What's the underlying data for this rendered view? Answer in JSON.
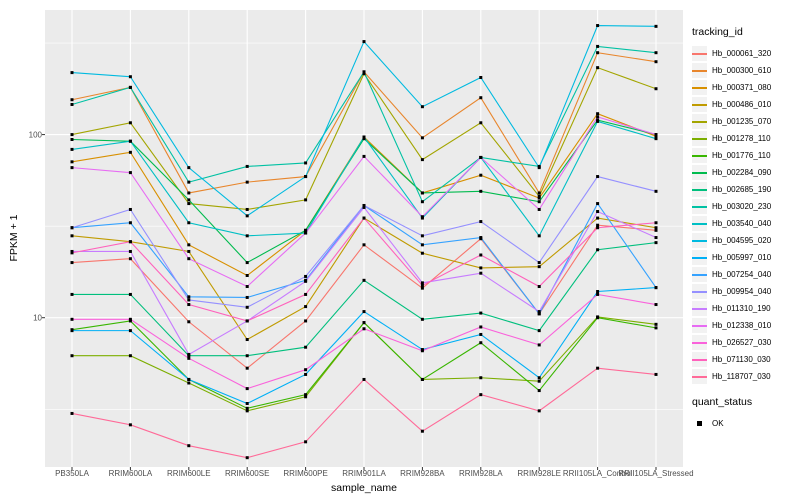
{
  "chart_data": {
    "type": "line",
    "title": "",
    "xlabel": "sample_name",
    "ylabel": "FPKM + 1",
    "yscale": "log10",
    "ylim": [
      1.53,
      479
    ],
    "yticks": [
      10,
      100
    ],
    "minor_gridlines": [
      3.162,
      31.62,
      316.2
    ],
    "grid": "on",
    "legend_position": "right",
    "legend_title": "tracking_id",
    "point_style": {
      "shape": "square",
      "color": "#000000",
      "size": 3
    },
    "quant_status": {
      "title": "quant_status",
      "items": [
        {
          "label": "OK",
          "shape": "square",
          "color": "#000000"
        }
      ]
    },
    "categories": [
      "PB350LA",
      "RRIM600LA",
      "RRIM600LE",
      "RRIM600SE",
      "RRIM600PE",
      "RRIM901LA",
      "RRIM928BA",
      "RRIM928LA",
      "RRIM928LE",
      "RRII105LA_Control",
      "RRII105LA_Stressed"
    ],
    "series": [
      {
        "name": "Hb_000061_320",
        "color": "#F8766D",
        "values": [
          20,
          21,
          9.5,
          5.3,
          9.6,
          25,
          14.5,
          27,
          10.5,
          32,
          30
        ]
      },
      {
        "name": "Hb_000300_610",
        "color": "#E8862D",
        "values": [
          155,
          181,
          48,
          55,
          59,
          220,
          96,
          159,
          48,
          280,
          250
        ]
      },
      {
        "name": "Hb_000371_080",
        "color": "#D89000",
        "values": [
          71,
          80,
          25,
          17,
          30,
          97,
          48,
          60,
          45,
          130,
          98
        ]
      },
      {
        "name": "Hb_000486_010",
        "color": "#C09B00",
        "values": [
          28,
          26,
          23,
          7.6,
          11.5,
          35,
          22.5,
          18.7,
          19,
          35,
          31
        ]
      },
      {
        "name": "Hb_001235_070",
        "color": "#A3A500",
        "values": [
          100,
          116,
          42,
          39,
          44,
          215,
          73,
          116,
          46,
          232,
          178
        ]
      },
      {
        "name": "Hb_001278_110",
        "color": "#7CAE00",
        "values": [
          6.2,
          6.2,
          4.4,
          3.1,
          3.7,
          9.4,
          4.6,
          4.7,
          4.5,
          10.1,
          9.2
        ]
      },
      {
        "name": "Hb_001776_110",
        "color": "#39B600",
        "values": [
          8.6,
          9.6,
          4.6,
          3.2,
          3.8,
          9.4,
          4.6,
          7.3,
          4.0,
          10,
          8.8
        ]
      },
      {
        "name": "Hb_002284_090",
        "color": "#00BB4E",
        "values": [
          94,
          92,
          44,
          20,
          30,
          95,
          48,
          49,
          43,
          120,
          100
        ]
      },
      {
        "name": "Hb_002685_190",
        "color": "#00BF7D",
        "values": [
          13.4,
          13.4,
          6.2,
          6.2,
          6.9,
          16,
          9.8,
          10.6,
          8.5,
          23.5,
          25.7
        ]
      },
      {
        "name": "Hb_003020_230",
        "color": "#00C1A3",
        "values": [
          146,
          181,
          55,
          67,
          70,
          220,
          43,
          75,
          67,
          303,
          280
        ]
      },
      {
        "name": "Hb_003540_040",
        "color": "#00BFC4",
        "values": [
          83,
          92,
          33,
          28,
          29,
          97,
          35,
          75,
          28,
          118,
          95
        ]
      },
      {
        "name": "Hb_004595_020",
        "color": "#00BAE0",
        "values": [
          218,
          207,
          66,
          36,
          59,
          322,
          142,
          205,
          66,
          394,
          390
        ]
      },
      {
        "name": "Hb_005997_010",
        "color": "#00B0F6",
        "values": [
          8.5,
          8.5,
          4.6,
          3.4,
          4.9,
          10.8,
          6.7,
          8.1,
          4.7,
          13.9,
          14.6
        ]
      },
      {
        "name": "Hb_007254_040",
        "color": "#35A2FF",
        "values": [
          31,
          33,
          13,
          12.9,
          16,
          41,
          25,
          27.4,
          10.5,
          42,
          14.6
        ]
      },
      {
        "name": "Hb_009954_040",
        "color": "#9590FF",
        "values": [
          31,
          39,
          12.5,
          11.4,
          16.8,
          41,
          28,
          33.5,
          20,
          59,
          49
        ]
      },
      {
        "name": "Hb_011310_190",
        "color": "#C77CFF",
        "values": [
          23,
          23,
          6.3,
          9.6,
          15.8,
          40,
          15.5,
          17.5,
          10.8,
          38,
          27.4
        ]
      },
      {
        "name": "Hb_012338_010",
        "color": "#E76BF3",
        "values": [
          66,
          62,
          21,
          14.8,
          29,
          76,
          35.6,
          75,
          39,
          125,
          100
        ]
      },
      {
        "name": "Hb_026527_030",
        "color": "#FA62DB",
        "values": [
          9.8,
          9.8,
          6.0,
          4.1,
          5.2,
          8.7,
          6.6,
          8.9,
          7.1,
          13.4,
          11.8
        ]
      },
      {
        "name": "Hb_071130_030",
        "color": "#FF62BC",
        "values": [
          22.6,
          26,
          11.8,
          9.6,
          13.4,
          35,
          15,
          22,
          14.8,
          31,
          33
        ]
      },
      {
        "name": "Hb_118707_030",
        "color": "#FF6A98",
        "values": [
          3.0,
          2.6,
          2.0,
          1.72,
          2.1,
          4.6,
          2.4,
          3.8,
          3.1,
          5.3,
          4.9
        ]
      }
    ]
  },
  "theme": {
    "panel_bg": "#EBEBEB",
    "grid_color": "#FFFFFF",
    "legend_key_bg": "#F2F2F2",
    "tick_color": "#333333",
    "tick_label_color": "#4D4D4D"
  }
}
